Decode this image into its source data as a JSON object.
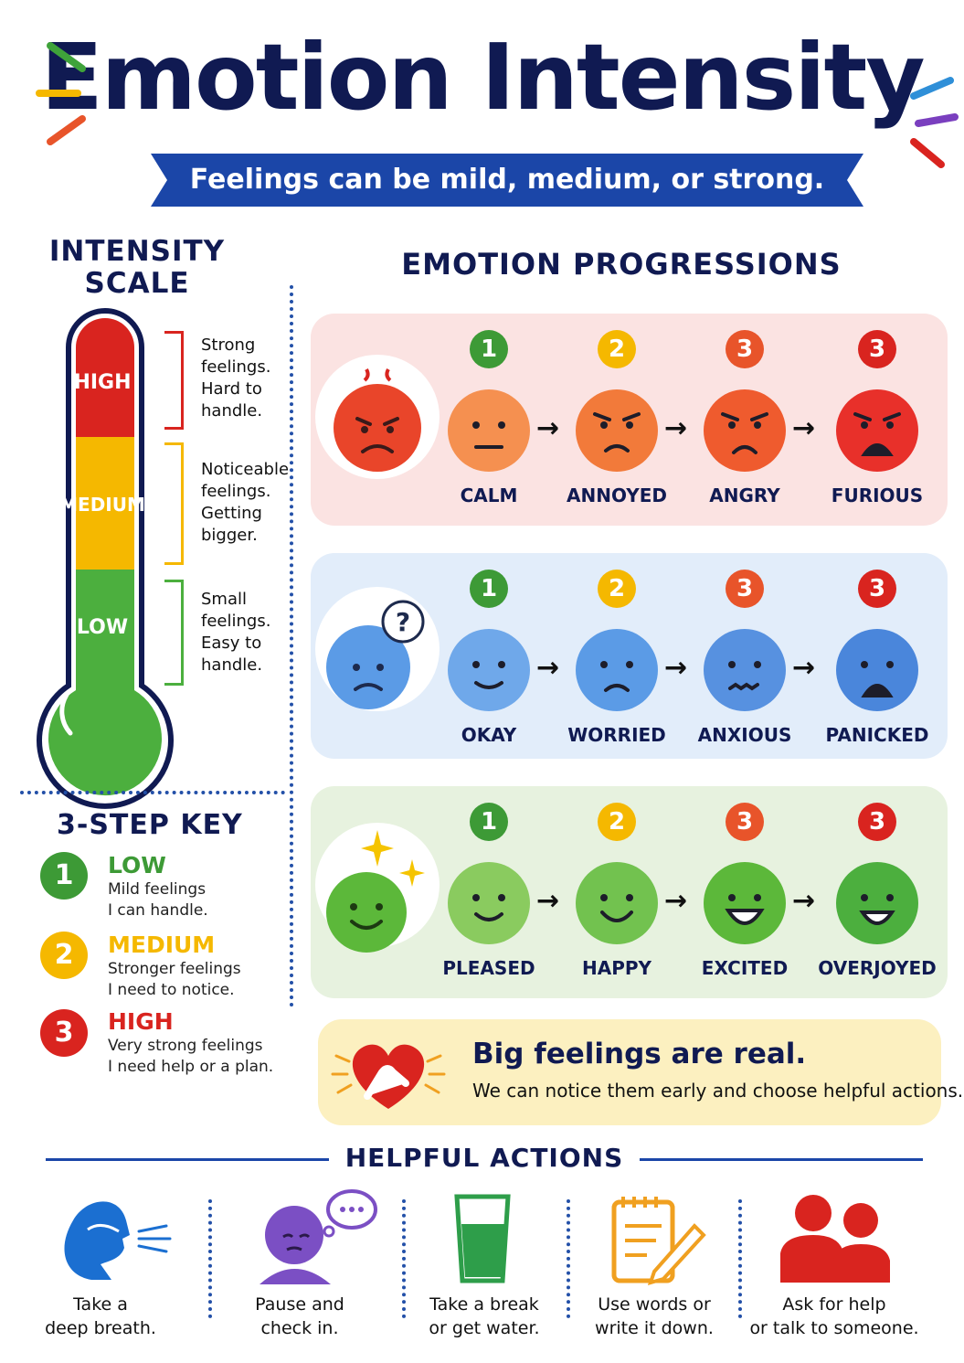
{
  "header": {
    "title": "Emotion Intensity",
    "subtitle": "Feelings can be mild, medium, or strong."
  },
  "scale": {
    "title": "INTENSITY SCALE",
    "levels": [
      {
        "label": "HIGH",
        "description": "Strong feelings. Hard to handle.",
        "color": "#d9241f"
      },
      {
        "label": "MEDIUM",
        "description": "Noticeable feelings. Getting bigger.",
        "color": "#f5b800"
      },
      {
        "label": "LOW",
        "description": "Small feelings. Easy to handle.",
        "color": "#4caf3e"
      }
    ]
  },
  "progressions": {
    "title": "EMOTION PROGRESSIONS",
    "rows": [
      {
        "theme": "anger",
        "bg": "#fbe3e2",
        "face_color": "#f27a3a",
        "steps": [
          {
            "badge": "1",
            "label": "CALM"
          },
          {
            "badge": "2",
            "label": "ANNOYED"
          },
          {
            "badge": "3",
            "label": "ANGRY"
          },
          {
            "badge": "3",
            "label": "FURIOUS"
          }
        ]
      },
      {
        "theme": "worry",
        "bg": "#e2edfa",
        "face_color": "#5b9be6",
        "steps": [
          {
            "badge": "1",
            "label": "OKAY"
          },
          {
            "badge": "2",
            "label": "WORRIED"
          },
          {
            "badge": "3",
            "label": "ANXIOUS"
          },
          {
            "badge": "3",
            "label": "PANICKED"
          }
        ]
      },
      {
        "theme": "joy",
        "bg": "#e7f2df",
        "face_color": "#72c24f",
        "steps": [
          {
            "badge": "1",
            "label": "PLEASED"
          },
          {
            "badge": "2",
            "label": "HAPPY"
          },
          {
            "badge": "3",
            "label": "EXCITED"
          },
          {
            "badge": "3",
            "label": "OVERJOYED"
          }
        ]
      }
    ]
  },
  "key": {
    "title": "3-STEP KEY",
    "items": [
      {
        "num": "1",
        "head": "LOW",
        "line1": "Mild feelings",
        "line2": "I can handle.",
        "color": "#3d9a36"
      },
      {
        "num": "2",
        "head": "MEDIUM",
        "line1": "Stronger feelings",
        "line2": "I need to notice.",
        "color": "#f5b800"
      },
      {
        "num": "3",
        "head": "HIGH",
        "line1": "Very strong feelings",
        "line2": "I need help or a plan.",
        "color": "#d9241f"
      }
    ]
  },
  "callout": {
    "head": "Big feelings are real.",
    "text": "We can notice them early and choose helpful actions."
  },
  "actions": {
    "title": "HELPFUL ACTIONS",
    "items": [
      {
        "icon": "breath-icon",
        "line1": "Take a",
        "line2": "deep breath."
      },
      {
        "icon": "thinking-icon",
        "line1": "Pause and",
        "line2": "check in."
      },
      {
        "icon": "water-glass-icon",
        "line1": "Take a break",
        "line2": "or get water."
      },
      {
        "icon": "notepad-icon",
        "line1": "Use words or",
        "line2": "write it down."
      },
      {
        "icon": "people-icon",
        "line1": "Ask for help",
        "line2": "or talk to someone."
      }
    ]
  }
}
